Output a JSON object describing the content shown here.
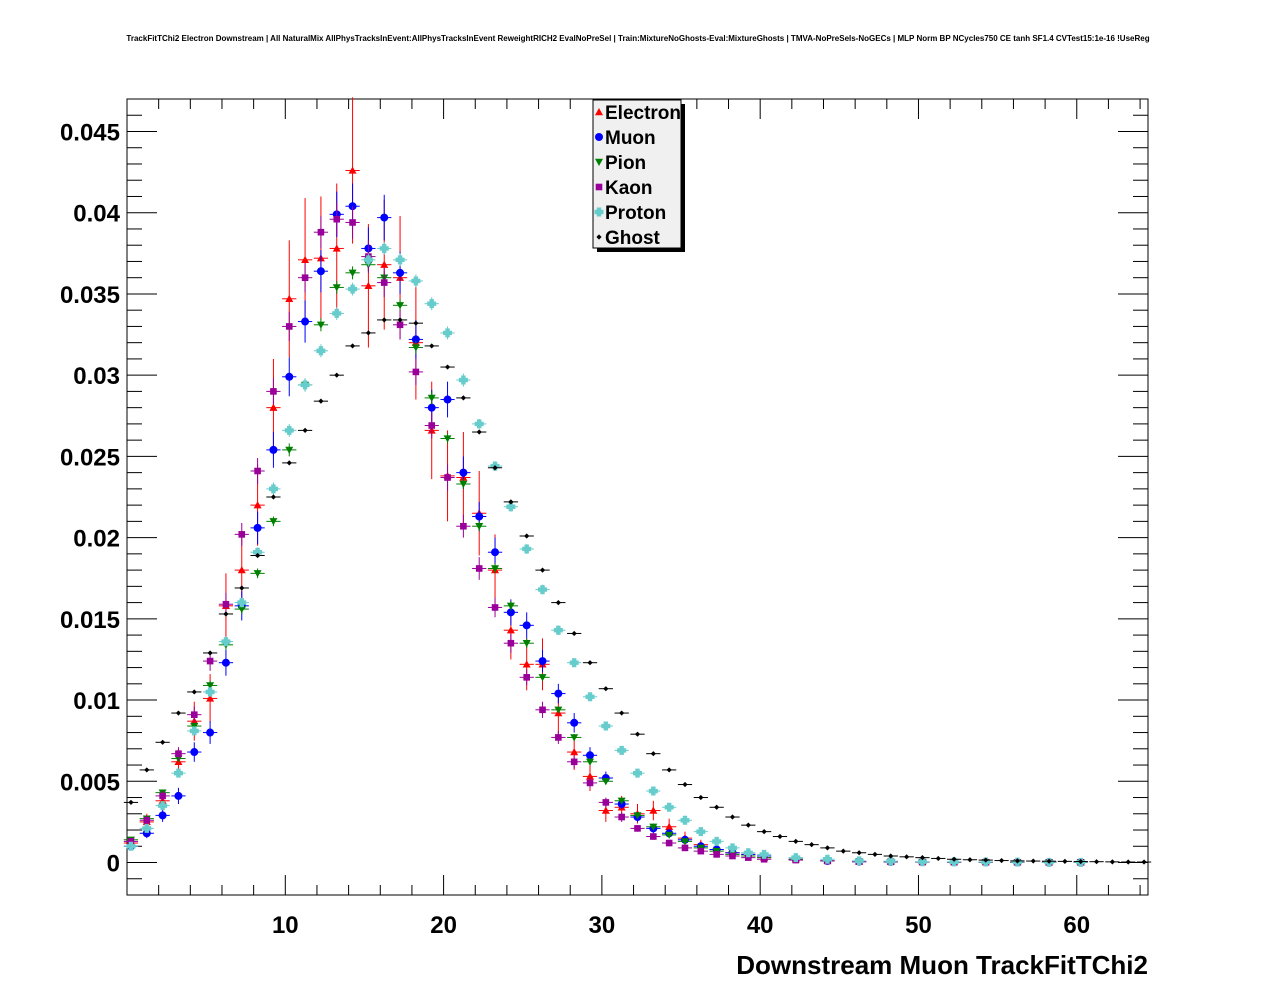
{
  "page": {
    "title": "TrackFitTChi2 Electron Downstream | All NaturalMix AllPhysTracksInEvent:AllPhysTracksInEvent ReweightRICH2 EvalNoPreSel | Train:MixtureNoGhosts-Eval:MixtureGhosts | TMVA-NoPreSels-NoGECs | MLP Norm BP NCycles750 CE tanh SF1.4 CVTest15:1e-16 !UseReg"
  },
  "chart_data": {
    "type": "scatter",
    "title": "TrackFitTChi2 Electron Downstream | All NaturalMix AllPhysTracksInEvent:AllPhysTracksInEvent ReweightRICH2 EvalNoPreSel | Train:MixtureNoGhosts-Eval:MixtureGhosts | TMVA-NoPreSels-NoGECs | MLP Norm BP NCycles750 CE tanh SF1.4 CVTest15:1e-16 !UseReg",
    "xlabel": "Downstream Muon TrackFitTChi2",
    "ylabel": "",
    "xlim": [
      0,
      64.5
    ],
    "ylim": [
      -0.002,
      0.047
    ],
    "xticks": [
      10,
      20,
      30,
      40,
      50,
      60
    ],
    "xtick_labels": [
      "10",
      "20",
      "30",
      "40",
      "50",
      "60"
    ],
    "yticks": [
      0,
      0.005,
      0.01,
      0.015,
      0.02,
      0.025,
      0.03,
      0.035,
      0.04,
      0.045
    ],
    "ytick_labels": [
      "0",
      "0.005",
      "0.01",
      "0.015",
      "0.02",
      "0.025",
      "0.03",
      "0.035",
      "0.04",
      "0.045"
    ],
    "grid": true,
    "legend_position": "top-center",
    "series": [
      {
        "name": "Electron",
        "color": "#ff0000",
        "marker": "triangle-up",
        "x": [
          0.25,
          1.25,
          2.25,
          3.25,
          4.25,
          5.25,
          6.25,
          7.25,
          8.25,
          9.25,
          10.25,
          11.25,
          12.25,
          13.25,
          14.25,
          15.25,
          16.25,
          17.25,
          18.25,
          19.25,
          20.25,
          21.25,
          22.25,
          23.25,
          24.25,
          25.25,
          26.25,
          27.25,
          28.25,
          29.25,
          30.25,
          31.25,
          32.25,
          33.25,
          34.25,
          35.25,
          36.25,
          37.25,
          38.25,
          39.25,
          40.25,
          42.25,
          44.25,
          46.25,
          48.25,
          50.25,
          52.25,
          54.25,
          56.25,
          58.25,
          60.25
        ],
        "y": [
          0.0012,
          0.0025,
          0.0038,
          0.0062,
          0.0087,
          0.0101,
          0.0158,
          0.018,
          0.022,
          0.028,
          0.0347,
          0.0371,
          0.0372,
          0.0378,
          0.0426,
          0.0355,
          0.0368,
          0.036,
          0.032,
          0.0266,
          0.0238,
          0.0237,
          0.0215,
          0.018,
          0.0143,
          0.0122,
          0.0122,
          0.0092,
          0.0068,
          0.0053,
          0.0032,
          0.0034,
          0.003,
          0.0032,
          0.0022,
          0.0015,
          0.0011,
          0.0008,
          0.0006,
          0.0005,
          0.0003,
          0.0002,
          0.0001,
          5e-05,
          5e-05,
          3e-05,
          3e-05,
          2e-05,
          2e-05,
          1e-05,
          1e-05
        ],
        "err": [
          0.0003,
          0.0005,
          0.0006,
          0.0008,
          0.0012,
          0.0015,
          0.002,
          0.0022,
          0.0025,
          0.003,
          0.0036,
          0.0038,
          0.0038,
          0.004,
          0.0045,
          0.0038,
          0.004,
          0.0038,
          0.0035,
          0.003,
          0.0028,
          0.0028,
          0.0026,
          0.0022,
          0.0018,
          0.0016,
          0.0016,
          0.0013,
          0.0011,
          0.0009,
          0.0007,
          0.0007,
          0.0006,
          0.0006,
          0.0005,
          0.0004,
          0.0003,
          0.0003,
          0.0002,
          0.0002,
          0.0001,
          0.0001,
          0.0001,
          5e-05,
          5e-05,
          3e-05,
          3e-05,
          2e-05,
          2e-05,
          1e-05,
          1e-05
        ]
      },
      {
        "name": "Muon",
        "color": "#0000ff",
        "marker": "circle",
        "x": [
          0.25,
          1.25,
          2.25,
          3.25,
          4.25,
          5.25,
          6.25,
          7.25,
          8.25,
          9.25,
          10.25,
          11.25,
          12.25,
          13.25,
          14.25,
          15.25,
          16.25,
          17.25,
          18.25,
          19.25,
          20.25,
          21.25,
          22.25,
          23.25,
          24.25,
          25.25,
          26.25,
          27.25,
          28.25,
          29.25,
          30.25,
          31.25,
          32.25,
          33.25,
          34.25,
          35.25,
          36.25,
          37.25,
          38.25,
          39.25,
          40.25,
          42.25,
          44.25,
          46.25,
          48.25,
          50.25,
          52.25,
          54.25,
          56.25,
          58.25,
          60.25
        ],
        "y": [
          0.001,
          0.0018,
          0.0029,
          0.0041,
          0.0068,
          0.008,
          0.0123,
          0.0158,
          0.0206,
          0.0254,
          0.0299,
          0.0333,
          0.0364,
          0.0399,
          0.0404,
          0.0378,
          0.0397,
          0.0363,
          0.0322,
          0.028,
          0.0285,
          0.024,
          0.0213,
          0.0191,
          0.0154,
          0.0146,
          0.0124,
          0.0104,
          0.0086,
          0.0066,
          0.0052,
          0.0036,
          0.0028,
          0.0021,
          0.0018,
          0.0014,
          0.001,
          0.0008,
          0.0006,
          0.0005,
          0.0004,
          0.0002,
          0.0001,
          5e-05,
          4e-05,
          3e-05,
          2e-05,
          2e-05,
          1e-05,
          1e-05,
          1e-05
        ],
        "err": [
          0.0002,
          0.0003,
          0.0004,
          0.0005,
          0.0006,
          0.0007,
          0.0008,
          0.0009,
          0.001,
          0.0011,
          0.0012,
          0.0013,
          0.0013,
          0.0014,
          0.0014,
          0.0013,
          0.0014,
          0.0013,
          0.0012,
          0.0011,
          0.0011,
          0.001,
          0.0009,
          0.0009,
          0.0008,
          0.0008,
          0.0007,
          0.0006,
          0.0006,
          0.0005,
          0.0004,
          0.0003,
          0.0003,
          0.0003,
          0.0002,
          0.0002,
          0.0002,
          0.0002,
          0.0001,
          0.0001,
          0.0001,
          0.0001,
          5e-05,
          3e-05,
          3e-05,
          2e-05,
          2e-05,
          1e-05,
          1e-05,
          1e-05,
          1e-05
        ]
      },
      {
        "name": "Pion",
        "color": "#008000",
        "marker": "triangle-down",
        "x": [
          0.25,
          1.25,
          2.25,
          3.25,
          4.25,
          5.25,
          6.25,
          7.25,
          8.25,
          9.25,
          10.25,
          11.25,
          12.25,
          13.25,
          14.25,
          15.25,
          16.25,
          17.25,
          18.25,
          19.25,
          20.25,
          21.25,
          22.25,
          23.25,
          24.25,
          25.25,
          26.25,
          27.25,
          28.25,
          29.25,
          30.25,
          31.25,
          32.25,
          33.25,
          34.25,
          35.25,
          36.25,
          37.25,
          38.25,
          39.25,
          40.25,
          42.25,
          44.25,
          46.25,
          48.25,
          50.25,
          52.25,
          54.25,
          56.25,
          58.25,
          60.25
        ],
        "y": [
          0.0014,
          0.0027,
          0.0043,
          0.0064,
          0.0084,
          0.0109,
          0.0134,
          0.0156,
          0.0178,
          0.021,
          0.0254,
          0.0294,
          0.0331,
          0.0354,
          0.0363,
          0.0368,
          0.036,
          0.0343,
          0.0317,
          0.0286,
          0.0261,
          0.0233,
          0.0207,
          0.0181,
          0.0158,
          0.0135,
          0.0114,
          0.0094,
          0.0077,
          0.0062,
          0.005,
          0.0038,
          0.0029,
          0.0022,
          0.0017,
          0.0013,
          0.0009,
          0.0007,
          0.0005,
          0.0004,
          0.0003,
          0.0002,
          0.0001,
          6e-05,
          4e-05,
          3e-05,
          2e-05,
          2e-05,
          1e-05,
          1e-05,
          1e-05
        ],
        "err": [
          0.0001,
          0.0001,
          0.0002,
          0.0002,
          0.0002,
          0.0003,
          0.0003,
          0.0003,
          0.0003,
          0.0003,
          0.0004,
          0.0004,
          0.0004,
          0.0004,
          0.0004,
          0.0004,
          0.0004,
          0.0004,
          0.0004,
          0.0004,
          0.0003,
          0.0003,
          0.0003,
          0.0003,
          0.0003,
          0.0003,
          0.0002,
          0.0002,
          0.0002,
          0.0002,
          0.0002,
          0.0001,
          0.0001,
          0.0001,
          0.0001,
          0.0001,
          0.0001,
          8e-05,
          6e-05,
          5e-05,
          4e-05,
          3e-05,
          2e-05,
          1e-05,
          1e-05,
          1e-05,
          1e-05,
          1e-05,
          1e-05,
          1e-05,
          1e-05
        ]
      },
      {
        "name": "Kaon",
        "color": "#990099",
        "marker": "square",
        "x": [
          0.25,
          1.25,
          2.25,
          3.25,
          4.25,
          5.25,
          6.25,
          7.25,
          8.25,
          9.25,
          10.25,
          11.25,
          12.25,
          13.25,
          14.25,
          15.25,
          16.25,
          17.25,
          18.25,
          19.25,
          20.25,
          21.25,
          22.25,
          23.25,
          24.25,
          25.25,
          26.25,
          27.25,
          28.25,
          29.25,
          30.25,
          31.25,
          32.25,
          33.25,
          34.25,
          35.25,
          36.25,
          37.25,
          38.25,
          39.25,
          40.25,
          42.25,
          44.25,
          46.25,
          48.25,
          50.25,
          52.25,
          54.25,
          56.25,
          58.25,
          60.25
        ],
        "y": [
          0.0013,
          0.0026,
          0.0041,
          0.0067,
          0.0091,
          0.0124,
          0.0159,
          0.0202,
          0.0241,
          0.029,
          0.033,
          0.036,
          0.0388,
          0.0396,
          0.0394,
          0.0373,
          0.0357,
          0.0331,
          0.0302,
          0.0269,
          0.0237,
          0.0207,
          0.0181,
          0.0157,
          0.0135,
          0.0114,
          0.0094,
          0.0077,
          0.0062,
          0.0049,
          0.0037,
          0.0028,
          0.0021,
          0.0016,
          0.0012,
          0.0009,
          0.0007,
          0.0005,
          0.0004,
          0.0003,
          0.0002,
          0.00015,
          0.0001,
          6e-05,
          4e-05,
          3e-05,
          2e-05,
          2e-05,
          1e-05,
          1e-05,
          1e-05
        ],
        "err": [
          0.0002,
          0.0003,
          0.0003,
          0.0004,
          0.0005,
          0.0006,
          0.0007,
          0.0007,
          0.0008,
          0.0008,
          0.0009,
          0.0009,
          0.001,
          0.001,
          0.001,
          0.001,
          0.0009,
          0.0009,
          0.0008,
          0.0008,
          0.0008,
          0.0007,
          0.0007,
          0.0006,
          0.0006,
          0.0005,
          0.0005,
          0.0004,
          0.0004,
          0.0003,
          0.0003,
          0.0003,
          0.0002,
          0.0002,
          0.0002,
          0.0001,
          0.0001,
          0.0001,
          0.0001,
          0.0001,
          0.0001,
          5e-05,
          4e-05,
          3e-05,
          2e-05,
          2e-05,
          1e-05,
          1e-05,
          1e-05,
          1e-05,
          1e-05
        ]
      },
      {
        "name": "Proton",
        "color": "#66cccc",
        "marker": "cross",
        "x": [
          0.25,
          1.25,
          2.25,
          3.25,
          4.25,
          5.25,
          6.25,
          7.25,
          8.25,
          9.25,
          10.25,
          11.25,
          12.25,
          13.25,
          14.25,
          15.25,
          16.25,
          17.25,
          18.25,
          19.25,
          20.25,
          21.25,
          22.25,
          23.25,
          24.25,
          25.25,
          26.25,
          27.25,
          28.25,
          29.25,
          30.25,
          31.25,
          32.25,
          33.25,
          34.25,
          35.25,
          36.25,
          37.25,
          38.25,
          39.25,
          40.25,
          42.25,
          44.25,
          46.25,
          48.25,
          50.25,
          52.25,
          54.25,
          56.25,
          58.25,
          60.25
        ],
        "y": [
          0.001,
          0.0021,
          0.0035,
          0.0055,
          0.0081,
          0.0105,
          0.0136,
          0.016,
          0.0191,
          0.023,
          0.0266,
          0.0294,
          0.0315,
          0.0338,
          0.0353,
          0.0371,
          0.0378,
          0.0371,
          0.0358,
          0.0344,
          0.0326,
          0.0297,
          0.027,
          0.0244,
          0.0219,
          0.0193,
          0.0168,
          0.0143,
          0.0123,
          0.0102,
          0.0084,
          0.0069,
          0.0055,
          0.0044,
          0.0034,
          0.0026,
          0.0019,
          0.0013,
          0.0009,
          0.0006,
          0.0005,
          0.0003,
          0.0002,
          0.0001,
          8e-05,
          5e-05,
          4e-05,
          3e-05,
          2e-05,
          1e-05,
          1e-05
        ],
        "err": [
          0.0001,
          0.0001,
          0.0002,
          0.0002,
          0.0002,
          0.0003,
          0.0003,
          0.0003,
          0.0003,
          0.0004,
          0.0004,
          0.0004,
          0.0004,
          0.0004,
          0.0004,
          0.0004,
          0.0004,
          0.0004,
          0.0004,
          0.0004,
          0.0004,
          0.0004,
          0.0003,
          0.0003,
          0.0003,
          0.0003,
          0.0003,
          0.0003,
          0.0002,
          0.0002,
          0.0002,
          0.0002,
          0.0002,
          0.0001,
          0.0001,
          0.0001,
          0.0001,
          0.0001,
          0.0001,
          8e-05,
          7e-05,
          5e-05,
          4e-05,
          3e-05,
          2e-05,
          2e-05,
          1e-05,
          1e-05,
          1e-05,
          1e-05,
          1e-05
        ]
      },
      {
        "name": "Ghost",
        "color": "#000000",
        "marker": "diamond-small",
        "x": [
          0.25,
          1.25,
          2.25,
          3.25,
          4.25,
          5.25,
          6.25,
          7.25,
          8.25,
          9.25,
          10.25,
          11.25,
          12.25,
          13.25,
          14.25,
          15.25,
          16.25,
          17.25,
          18.25,
          19.25,
          20.25,
          21.25,
          22.25,
          23.25,
          24.25,
          25.25,
          26.25,
          27.25,
          28.25,
          29.25,
          30.25,
          31.25,
          32.25,
          33.25,
          34.25,
          35.25,
          36.25,
          37.25,
          38.25,
          39.25,
          40.25,
          41.25,
          42.25,
          43.25,
          44.25,
          45.25,
          46.25,
          47.25,
          48.25,
          49.25,
          50.25,
          51.25,
          52.25,
          53.25,
          54.25,
          55.25,
          56.25,
          57.25,
          58.25,
          59.25,
          60.25,
          61.25,
          62.25,
          63.25,
          64.25
        ],
        "y": [
          0.0037,
          0.0057,
          0.0074,
          0.0092,
          0.0105,
          0.0129,
          0.0153,
          0.0169,
          0.0189,
          0.0225,
          0.0246,
          0.0266,
          0.0284,
          0.03,
          0.0318,
          0.0326,
          0.0334,
          0.0334,
          0.0332,
          0.0318,
          0.0305,
          0.0286,
          0.0265,
          0.0243,
          0.0222,
          0.0201,
          0.018,
          0.016,
          0.0141,
          0.0123,
          0.0107,
          0.0092,
          0.0079,
          0.0067,
          0.0057,
          0.0048,
          0.004,
          0.0034,
          0.0028,
          0.0023,
          0.0019,
          0.0016,
          0.0013,
          0.0011,
          0.0009,
          0.0007,
          0.0006,
          0.0005,
          0.0004,
          0.00035,
          0.0003,
          0.00025,
          0.0002,
          0.00017,
          0.00015,
          0.00012,
          0.0001,
          9e-05,
          8e-05,
          7e-05,
          6e-05,
          5e-05,
          4e-05,
          3e-05,
          3e-05
        ],
        "err": [
          0.0001,
          0.0001,
          0.0001,
          0.0001,
          0.0001,
          0.0001,
          0.0001,
          0.0001,
          0.0001,
          0.0001,
          0.0001,
          0.0001,
          0.0001,
          0.0001,
          0.0001,
          0.0001,
          0.0001,
          0.0001,
          0.0001,
          0.0001,
          0.0001,
          0.0001,
          0.0001,
          0.0001,
          0.0001,
          0.0001,
          0.0001,
          0.0001,
          0.0001,
          0.0001,
          0.0001,
          0.0001,
          0.0001,
          0.0001,
          0.0001,
          0.0001,
          0.0001,
          0.0001,
          0.0001,
          0.0001,
          0.0001,
          0.0001,
          0.0001,
          0.0001,
          0.0001,
          0.0001,
          0.0001,
          0.0001,
          0.0001,
          0.0001,
          0.0001,
          0.0001,
          0.0001,
          0.0001,
          0.0001,
          0.0001,
          0.0001,
          0.0001,
          0.0001,
          0.0001,
          0.0001,
          0.0001,
          0.0001,
          0.0001,
          0.0001
        ]
      }
    ]
  }
}
